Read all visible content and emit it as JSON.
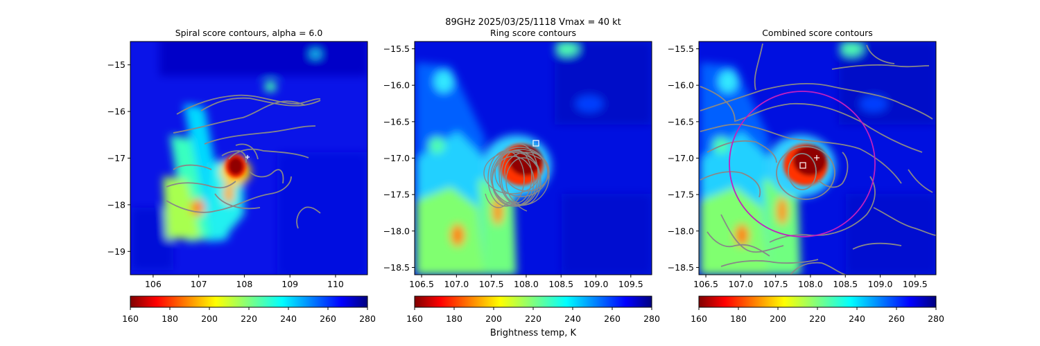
{
  "suptitle": "89GHz  2025/03/25/1118    Vmax = 40 kt",
  "colorbar": {
    "ticks": [
      "160",
      "180",
      "200",
      "220",
      "240",
      "260",
      "280"
    ],
    "label": "Brightness temp, K"
  },
  "chart_data": [
    {
      "type": "heatmap",
      "title": "Spiral score contours, alpha =  6.0",
      "xlim": [
        105.5,
        110.7
      ],
      "ylim": [
        -19.5,
        -14.5
      ],
      "xticks": [
        "106",
        "107",
        "108",
        "109",
        "110"
      ],
      "yticks": [
        "−15",
        "−16",
        "−17",
        "−18",
        "−19"
      ],
      "value_range": [
        160,
        280
      ],
      "colormap": "jet_r",
      "background_value": 275,
      "masked_region_value": "blank (no data)",
      "contours": "spiral score (grey)",
      "cold_core_center": [
        107.8,
        -17.15
      ],
      "markers": [
        {
          "kind": "plus",
          "x": 108.1,
          "y": -17.0
        }
      ]
    },
    {
      "type": "heatmap",
      "title": "Ring score contours",
      "xlim": [
        106.4,
        109.8
      ],
      "ylim": [
        -18.6,
        -15.4
      ],
      "xticks": [
        "106.5",
        "107.0",
        "107.5",
        "108.0",
        "108.5",
        "109.0",
        "109.5"
      ],
      "yticks": [
        "−15.5",
        "−16.0",
        "−16.5",
        "−17.0",
        "−17.5",
        "−18.0",
        "−18.5"
      ],
      "value_range": [
        160,
        280
      ],
      "colormap": "jet_r",
      "contours": "ring score (grey)",
      "cold_core_center": [
        107.9,
        -17.05
      ],
      "markers": [
        {
          "kind": "square",
          "x": 108.15,
          "y": -16.78
        }
      ]
    },
    {
      "type": "heatmap",
      "title": "Combined score contours",
      "xlim": [
        106.4,
        109.8
      ],
      "ylim": [
        -18.6,
        -15.4
      ],
      "xticks": [
        "106.5",
        "107.0",
        "107.5",
        "108.0",
        "108.5",
        "109.0",
        "109.5"
      ],
      "yticks": [
        "−15.5",
        "−16.0",
        "−16.5",
        "−17.0",
        "−17.5",
        "−18.0",
        "−18.5"
      ],
      "value_range": [
        160,
        280
      ],
      "colormap": "jet_r",
      "contours": "combined score (grey)",
      "cold_core_center": [
        107.9,
        -17.05
      ],
      "circle": {
        "cx": 107.9,
        "cy": -17.05,
        "r_deg": 1.05,
        "color": "#c020c0"
      },
      "markers": [
        {
          "kind": "square",
          "x": 107.9,
          "y": -17.1
        },
        {
          "kind": "plus",
          "x": 108.1,
          "y": -16.98
        }
      ]
    }
  ]
}
